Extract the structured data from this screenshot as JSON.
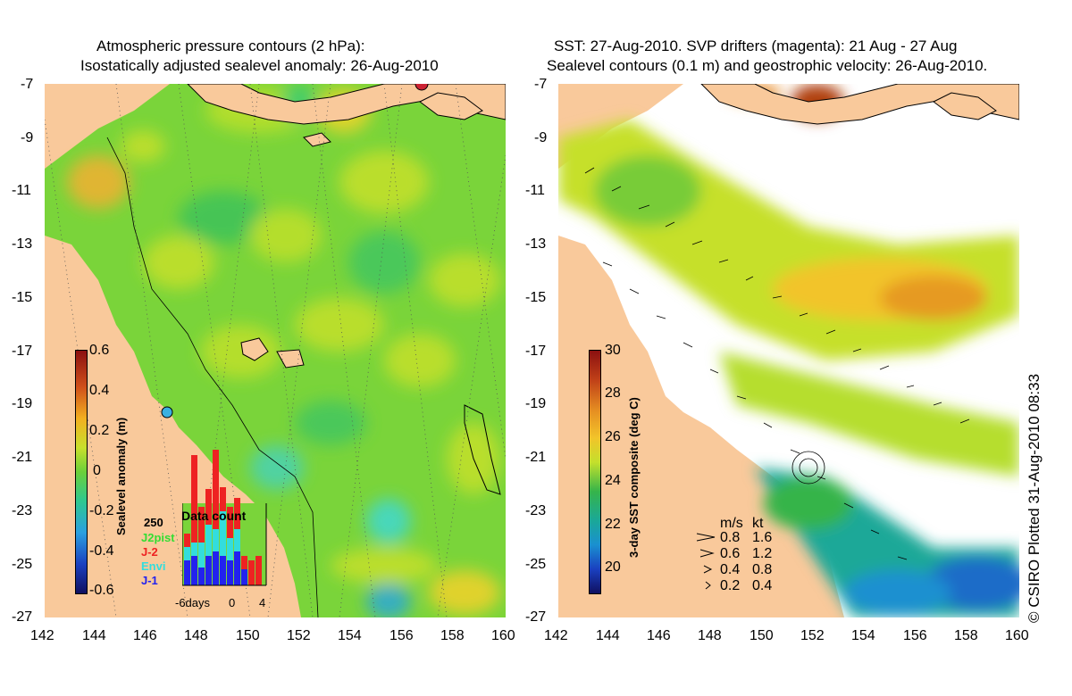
{
  "left_panel": {
    "title_line1": "Atmospheric pressure contours (2 hPa):",
    "title_line2": "Isostatically adjusted sealevel anomaly: 26-Aug-2010",
    "colorbar": {
      "label": "Sealevel anomaly (m)",
      "ticks": [
        "0.6",
        "0.4",
        "0.2",
        "0",
        "-0.2",
        "-0.4",
        "-0.6"
      ]
    },
    "inset": {
      "max_label": "250",
      "title": "Data count",
      "legend": [
        {
          "name": "J2pist",
          "color": "#33dd33"
        },
        {
          "name": "J-2",
          "color": "#ee2222"
        },
        {
          "name": "Envi",
          "color": "#33dddd"
        },
        {
          "name": "J-1",
          "color": "#2222ee"
        }
      ],
      "x_labels": [
        "-6days",
        "0",
        "4"
      ]
    }
  },
  "right_panel": {
    "title_line1": "SST: 27-Aug-2010. SVP drifters (magenta): 21 Aug - 27 Aug",
    "title_line2": "Sealevel contours (0.1 m) and geostrophic velocity: 26-Aug-2010.",
    "colorbar": {
      "label": "3-day SST composite (deg C)",
      "ticks": [
        "30",
        "28",
        "26",
        "24",
        "22",
        "20"
      ]
    },
    "velocity_key": {
      "header_ms": "m/s",
      "header_kt": "kt",
      "rows": [
        {
          "ms": "0.8",
          "kt": "1.6"
        },
        {
          "ms": "0.6",
          "kt": "1.2"
        },
        {
          "ms": "0.4",
          "kt": "0.8"
        },
        {
          "ms": "0.2",
          "kt": "0.4"
        }
      ]
    }
  },
  "axes": {
    "lat_labels": [
      "-7",
      "-9",
      "-11",
      "-13",
      "-15",
      "-17",
      "-19",
      "-21",
      "-23",
      "-25",
      "-27"
    ],
    "lon_labels": [
      "142",
      "144",
      "146",
      "148",
      "150",
      "152",
      "154",
      "156",
      "158",
      "160"
    ]
  },
  "copyright": "© CSIRO Plotted 31-Aug-2010 08:33",
  "colors": {
    "land": "#f9c99b",
    "ocean_ssh": "#7ad43a",
    "sst_white": "#ffffff",
    "drifter": "#cc2266"
  }
}
